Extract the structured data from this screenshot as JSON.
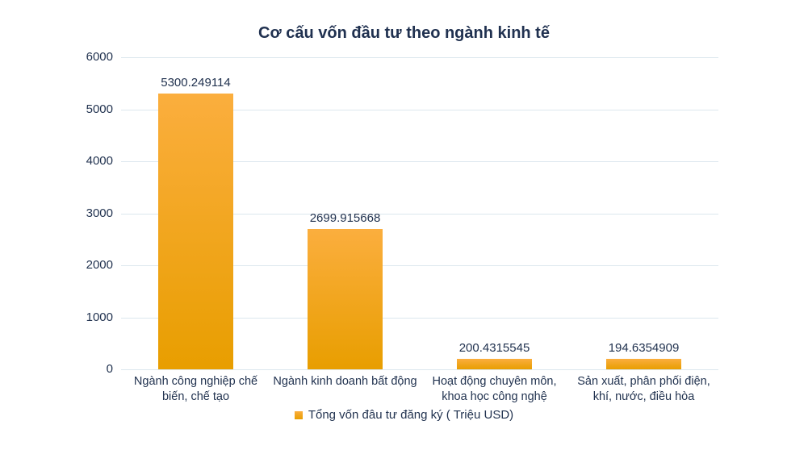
{
  "chart_data": {
    "type": "bar",
    "title": "Cơ cấu vốn đầu tư theo ngành kinh tế",
    "legend": "Tổng vốn đâu tư đăng ký ( Triệu USD)",
    "legend_position": "bottom",
    "categories": [
      "Ngành công nghiệp chế\nbiến, chế tạo",
      "Ngành kinh doanh bất động",
      "Hoạt động chuyên môn,\nkhoa học công nghệ",
      "Sản xuất, phân phối điện,\nkhí, nước, điều hòa"
    ],
    "values": [
      5300.249114,
      2699.915668,
      200.4315545,
      194.6354909
    ],
    "value_labels": [
      "5300.249114",
      "2699.915668",
      "200.4315545",
      "194.6354909"
    ],
    "xlabel": "",
    "ylabel": "",
    "ylim": [
      0,
      6000
    ],
    "yticks": [
      0,
      1000,
      2000,
      3000,
      4000,
      5000,
      6000
    ],
    "grid": "horizontal",
    "colors": {
      "bar_top": "#FBAE3E",
      "bar_bottom": "#E89E00",
      "grid": "#DCE7EE",
      "text": "#223350",
      "background": "#FFFFFF"
    }
  }
}
